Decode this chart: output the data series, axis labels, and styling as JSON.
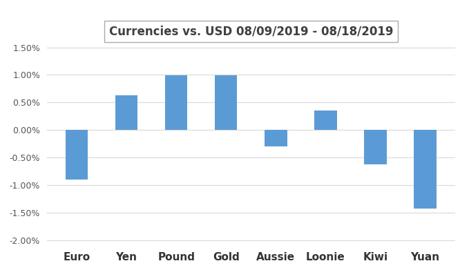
{
  "categories": [
    "Euro",
    "Yen",
    "Pound",
    "Gold",
    "Aussie",
    "Loonie",
    "Kiwi",
    "Yuan"
  ],
  "values": [
    -0.009,
    0.0063,
    0.0099,
    0.0099,
    -0.003,
    0.0035,
    -0.0063,
    -0.0143
  ],
  "bar_color": "#5B9BD5",
  "title": "Currencies vs. USD 08/09/2019 - 08/18/2019",
  "ylim": [
    -0.021,
    0.016
  ],
  "yticks": [
    -0.02,
    -0.015,
    -0.01,
    -0.005,
    0.0,
    0.005,
    0.01,
    0.015
  ],
  "background_color": "#FFFFFF",
  "grid_color": "#D9D9D9",
  "title_fontsize": 12,
  "title_box_facecolor": "#FFFFFF",
  "title_box_edgecolor": "#AAAAAA",
  "bar_width": 0.45,
  "tick_label_fontsize": 9,
  "x_label_fontsize": 11
}
